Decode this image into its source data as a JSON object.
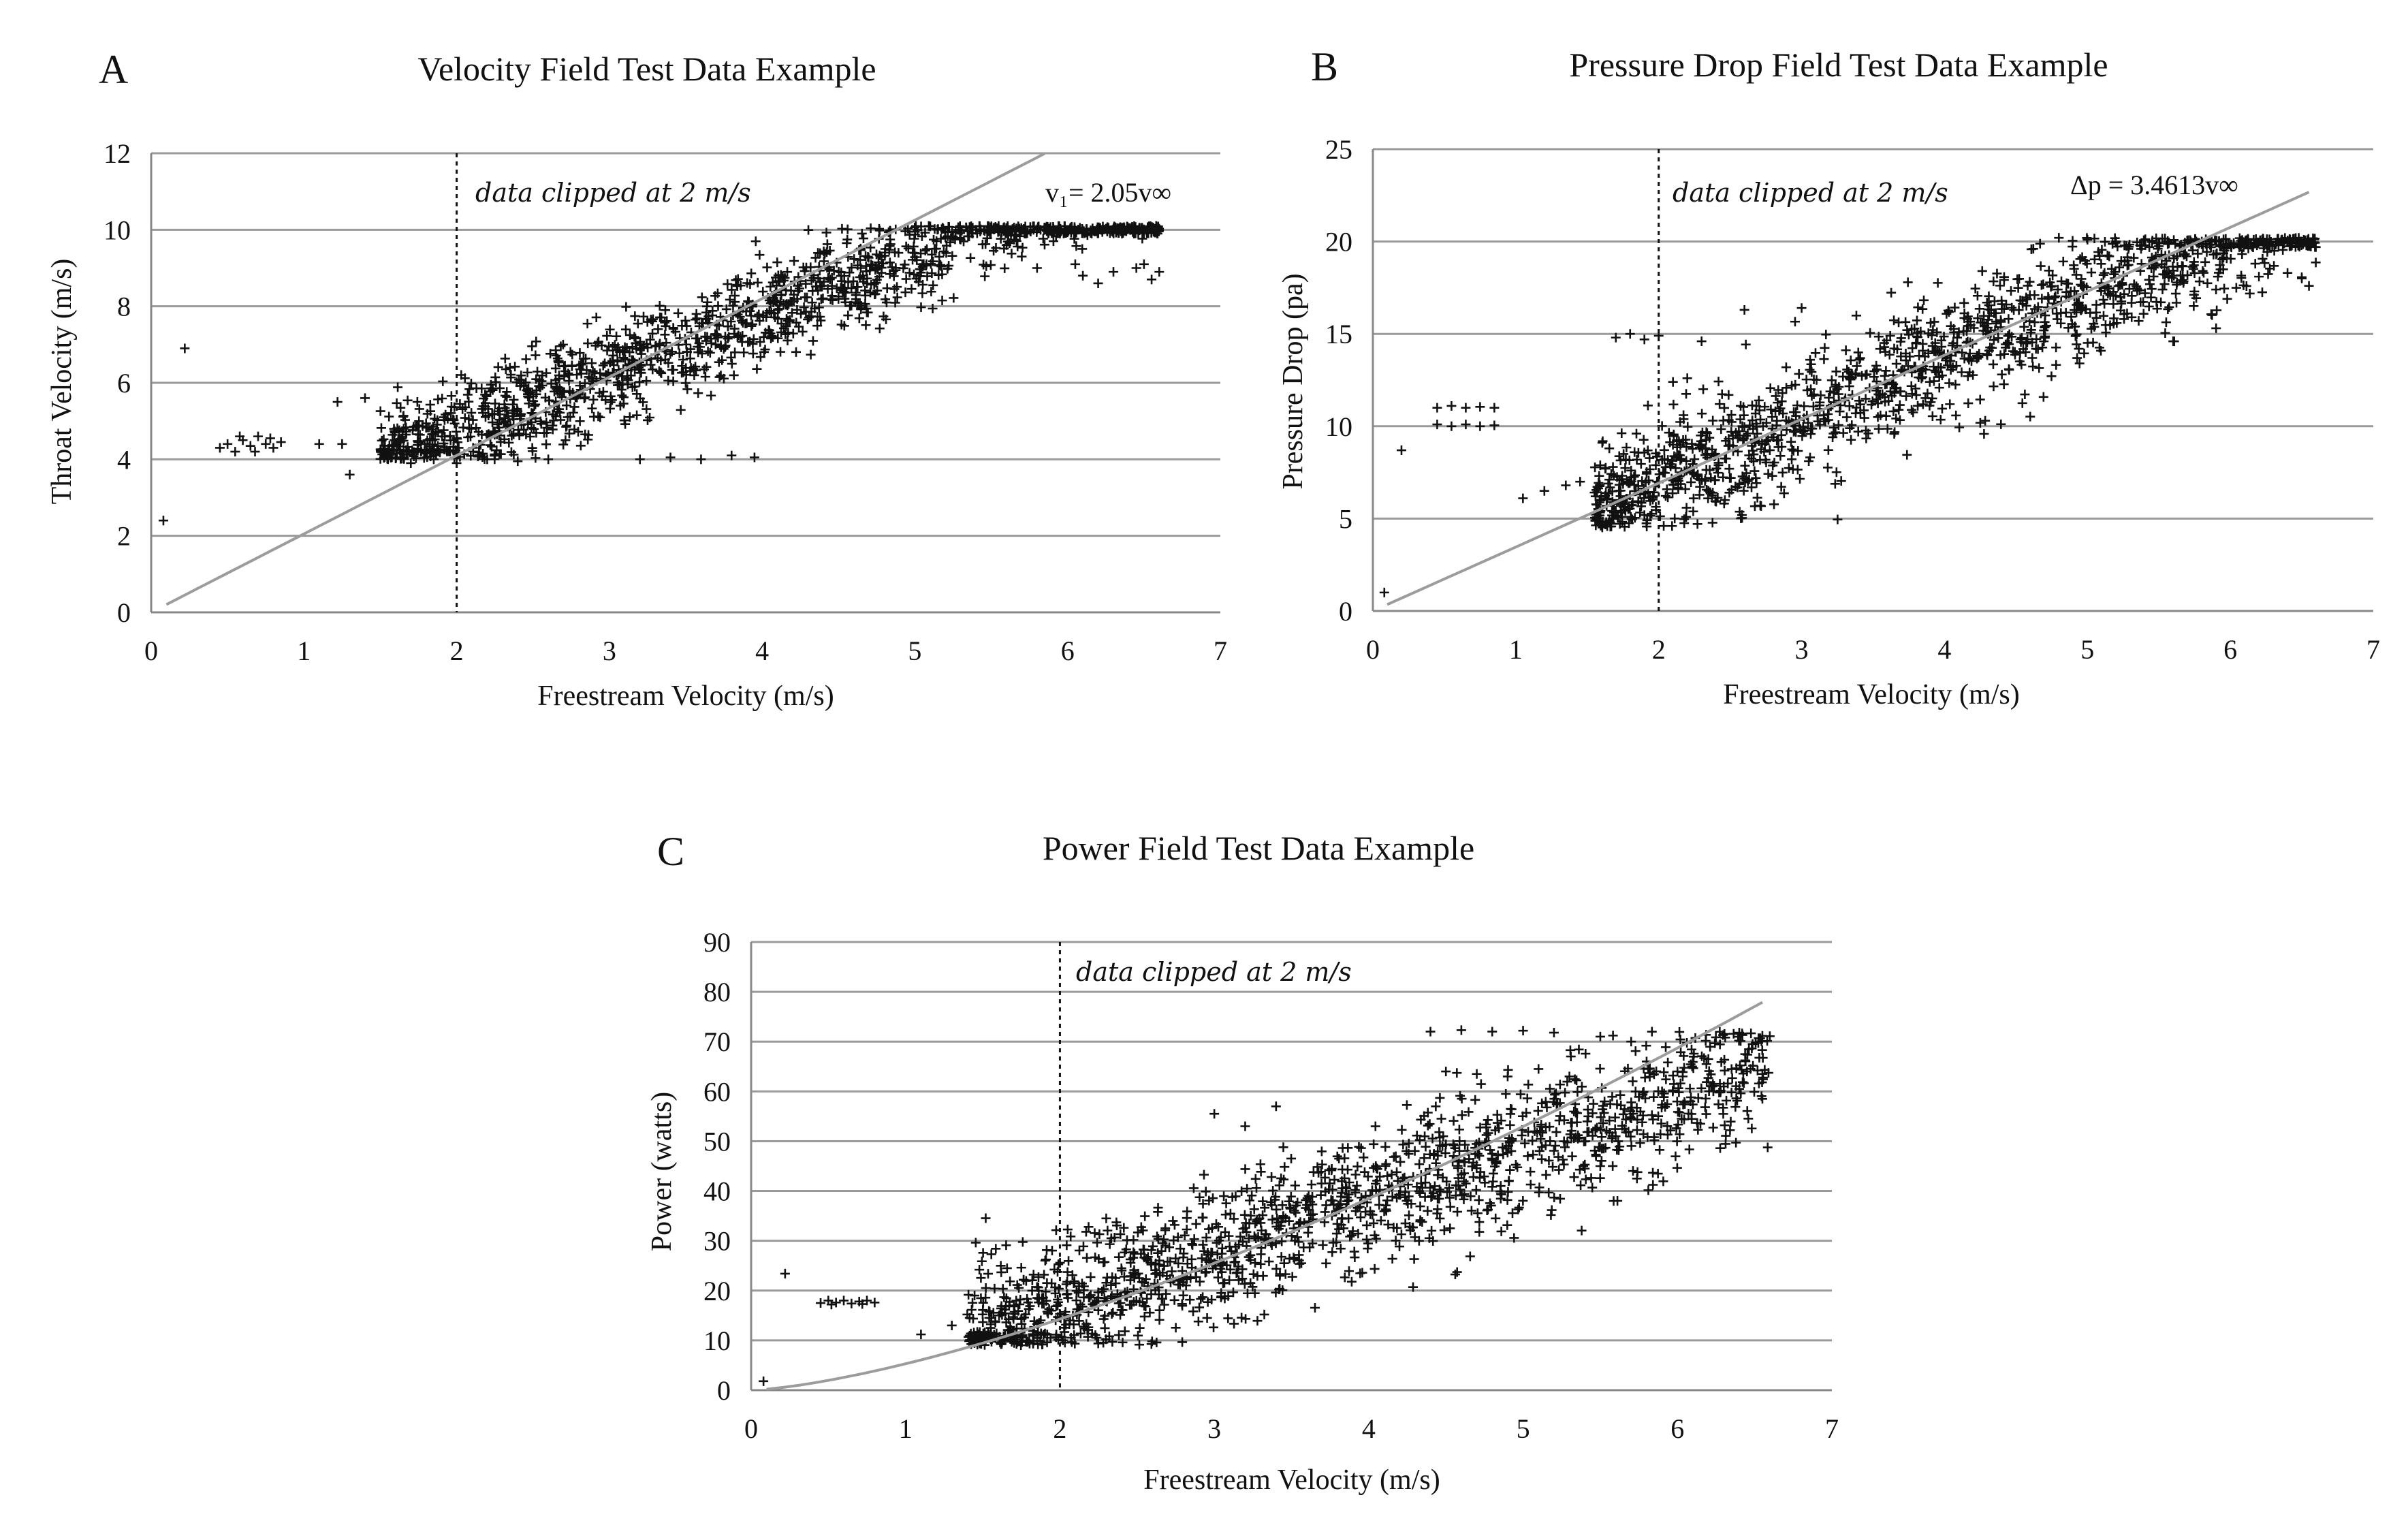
{
  "panels": {
    "A": {
      "letter": "A",
      "title": "Velocity Field Test Data Example",
      "ylabel": "Throat Velocity (m/s)",
      "xlabel": "Freestream Velocity (m/s)",
      "clip_note": "data clipped at 2 m/s",
      "equation": "v₁= 2.05v∞"
    },
    "B": {
      "letter": "B",
      "title": "Pressure Drop Field Test Data Example",
      "ylabel": "Pressure Drop (pa)",
      "xlabel": "Freestream Velocity (m/s)",
      "clip_note": "data clipped at 2 m/s",
      "equation": "Δp = 3.4613v∞"
    },
    "C": {
      "letter": "C",
      "title": "Power Field Test Data Example",
      "ylabel": "Power (watts)",
      "xlabel": "Freestream Velocity (m/s)",
      "clip_note": "data clipped at 2 m/s"
    }
  },
  "chart_data": [
    {
      "id": "A",
      "type": "scatter",
      "title": "Velocity Field Test Data Example",
      "xlabel": "Freestream Velocity (m/s)",
      "ylabel": "Throat Velocity (m/s)",
      "xlim": [
        0,
        7
      ],
      "ylim": [
        0,
        12
      ],
      "xticks": [
        0,
        1,
        2,
        3,
        4,
        5,
        6,
        7
      ],
      "yticks": [
        0,
        2,
        4,
        6,
        8,
        10,
        12
      ],
      "grid": "horizontal",
      "clip_x": 2,
      "fit": {
        "type": "linear",
        "slope": 2.05,
        "x_range": [
          0.1,
          5.85
        ]
      },
      "cloud_approx": {
        "x_range": [
          1.5,
          6.6
        ],
        "y_center_slope": 1.55,
        "y_center_intercept": 1.6,
        "y_floor": 4.0,
        "y_ceiling": 10.1,
        "n": 1500,
        "seed": 11
      },
      "series": [
        {
          "name": "low-speed cluster",
          "points": [
            [
              0.45,
              4.3
            ],
            [
              0.5,
              4.4
            ],
            [
              0.55,
              4.2
            ],
            [
              0.6,
              4.5
            ],
            [
              0.65,
              4.35
            ],
            [
              0.7,
              4.6
            ],
            [
              0.75,
              4.4
            ],
            [
              0.8,
              4.3
            ],
            [
              0.85,
              4.45
            ],
            [
              0.58,
              4.6
            ],
            [
              0.68,
              4.2
            ],
            [
              0.78,
              4.55
            ]
          ]
        },
        {
          "name": "outliers",
          "points": [
            [
              0.08,
              2.4
            ],
            [
              0.22,
              6.9
            ],
            [
              1.1,
              4.4
            ],
            [
              1.3,
              3.6
            ],
            [
              1.25,
              4.4
            ],
            [
              1.22,
              5.5
            ],
            [
              1.4,
              5.6
            ]
          ]
        },
        {
          "name": "floor band",
          "points": [
            [
              1.7,
              3.9
            ],
            [
              1.85,
              4.0
            ],
            [
              2.0,
              3.9
            ],
            [
              2.2,
              4.0
            ],
            [
              2.4,
              3.95
            ],
            [
              2.6,
              4.0
            ],
            [
              3.2,
              4.0
            ],
            [
              3.4,
              4.05
            ],
            [
              3.6,
              4.0
            ],
            [
              3.8,
              4.1
            ],
            [
              3.95,
              4.05
            ]
          ]
        },
        {
          "name": "high-speed tail",
          "points": [
            [
              5.2,
              9.8
            ],
            [
              5.4,
              10.0
            ],
            [
              5.6,
              9.6
            ],
            [
              5.8,
              9.0
            ],
            [
              5.95,
              9.9
            ],
            [
              6.1,
              8.8
            ],
            [
              6.2,
              8.6
            ],
            [
              6.3,
              8.9
            ],
            [
              6.45,
              9.0
            ],
            [
              6.55,
              8.7
            ],
            [
              6.6,
              8.9
            ],
            [
              6.5,
              9.1
            ],
            [
              6.05,
              9.1
            ],
            [
              5.7,
              9.3
            ]
          ]
        }
      ]
    },
    {
      "id": "B",
      "type": "scatter",
      "title": "Pressure Drop Field Test Data Example",
      "xlabel": "Freestream Velocity (m/s)",
      "ylabel": "Pressure Drop (pa)",
      "xlim": [
        0,
        7
      ],
      "ylim": [
        0,
        25
      ],
      "xticks": [
        0,
        1,
        2,
        3,
        4,
        5,
        6,
        7
      ],
      "yticks": [
        0,
        5,
        10,
        15,
        20,
        25
      ],
      "grid": "horizontal",
      "clip_x": 2,
      "fit": {
        "type": "linear",
        "slope": 3.4613,
        "x_range": [
          0.1,
          6.55
        ]
      },
      "cloud_approx": {
        "x_range": [
          1.55,
          6.6
        ],
        "y_center_slope": 3.3,
        "y_center_intercept": 0.5,
        "y_floor": 4.5,
        "y_ceiling": 20.2,
        "n": 1400,
        "seed": 23
      },
      "series": [
        {
          "name": "low-speed cluster",
          "points": [
            [
              0.45,
              11.0
            ],
            [
              0.55,
              11.1
            ],
            [
              0.65,
              11.0
            ],
            [
              0.75,
              11.05
            ],
            [
              0.85,
              11.0
            ],
            [
              0.45,
              10.1
            ],
            [
              0.55,
              10.0
            ],
            [
              0.65,
              10.1
            ],
            [
              0.75,
              10.0
            ],
            [
              0.85,
              10.05
            ]
          ]
        },
        {
          "name": "outliers",
          "points": [
            [
              0.08,
              1.0
            ],
            [
              0.2,
              8.7
            ],
            [
              1.05,
              6.1
            ],
            [
              1.2,
              6.5
            ],
            [
              1.35,
              6.8
            ],
            [
              1.45,
              7.0
            ]
          ]
        },
        {
          "name": "upper band",
          "points": [
            [
              1.7,
              14.8
            ],
            [
              1.8,
              15.0
            ],
            [
              1.9,
              14.7
            ],
            [
              2.0,
              14.9
            ],
            [
              2.3,
              14.6
            ],
            [
              2.6,
              16.3
            ],
            [
              3.0,
              16.4
            ],
            [
              2.1,
              12.4
            ],
            [
              2.2,
              12.6
            ]
          ]
        },
        {
          "name": "high-speed tail",
          "points": [
            [
              4.8,
              20.2
            ],
            [
              5.0,
              20.1
            ],
            [
              5.2,
              20.0
            ],
            [
              5.5,
              19.9
            ],
            [
              5.8,
              20.0
            ],
            [
              6.1,
              19.9
            ],
            [
              6.2,
              18.1
            ],
            [
              6.4,
              18.3
            ],
            [
              6.55,
              17.6
            ],
            [
              6.5,
              18.0
            ],
            [
              5.9,
              17.4
            ],
            [
              5.6,
              14.6
            ]
          ]
        }
      ]
    },
    {
      "id": "C",
      "type": "scatter",
      "title": "Power Field Test Data Example",
      "xlabel": "Freestream Velocity (m/s)",
      "ylabel": "Power (watts)",
      "xlim": [
        0,
        7
      ],
      "ylim": [
        0,
        90
      ],
      "xticks": [
        0,
        1,
        2,
        3,
        4,
        5,
        6,
        7
      ],
      "yticks": [
        0,
        10,
        20,
        30,
        40,
        50,
        60,
        70,
        80,
        90
      ],
      "grid": "horizontal",
      "clip_x": 2,
      "fit": {
        "type": "power",
        "coefficient": 5.3,
        "exponent": 1.43,
        "x_range": [
          0.1,
          6.55
        ]
      },
      "cloud_approx": {
        "x_range": [
          1.4,
          6.6
        ],
        "y_center_slope": 10.5,
        "y_center_intercept": -4.0,
        "y_floor": 9.0,
        "y_ceiling": 72.0,
        "n": 1500,
        "seed": 37
      },
      "series": [
        {
          "name": "low-speed cluster",
          "points": [
            [
              0.45,
              17.5
            ],
            [
              0.5,
              18.0
            ],
            [
              0.55,
              17.6
            ],
            [
              0.6,
              18.0
            ],
            [
              0.65,
              17.4
            ],
            [
              0.7,
              17.8
            ],
            [
              0.75,
              18.0
            ],
            [
              0.8,
              17.6
            ],
            [
              0.52,
              17.2
            ],
            [
              0.72,
              17.3
            ]
          ]
        },
        {
          "name": "outliers",
          "points": [
            [
              0.08,
              1.8
            ],
            [
              0.22,
              23.4
            ],
            [
              1.1,
              11.2
            ],
            [
              1.3,
              13.0
            ],
            [
              1.4,
              15.2
            ],
            [
              2.3,
              34.5
            ],
            [
              3.0,
              55.5
            ],
            [
              3.2,
              53.0
            ],
            [
              3.4,
              57.0
            ]
          ]
        },
        {
          "name": "upper band",
          "points": [
            [
              4.4,
              72.0
            ],
            [
              4.6,
              72.3
            ],
            [
              4.8,
              72.0
            ],
            [
              5.0,
              72.2
            ],
            [
              5.2,
              71.8
            ],
            [
              4.5,
              64.0
            ],
            [
              4.7,
              63.5
            ],
            [
              4.9,
              63.0
            ],
            [
              5.1,
              64.5
            ],
            [
              5.3,
              63.0
            ],
            [
              5.5,
              71.0
            ],
            [
              5.7,
              70.0
            ]
          ]
        },
        {
          "name": "high-speed tail",
          "points": [
            [
              5.8,
              66.0
            ],
            [
              6.0,
              64.0
            ],
            [
              6.2,
              66.5
            ],
            [
              6.4,
              60.5
            ],
            [
              6.45,
              64.0
            ],
            [
              6.55,
              63.5
            ],
            [
              6.55,
              58.5
            ],
            [
              6.3,
              61.0
            ],
            [
              5.9,
              60.0
            ],
            [
              5.6,
              51.0
            ],
            [
              5.4,
              44.5
            ],
            [
              5.5,
              45.0
            ]
          ]
        }
      ]
    }
  ]
}
